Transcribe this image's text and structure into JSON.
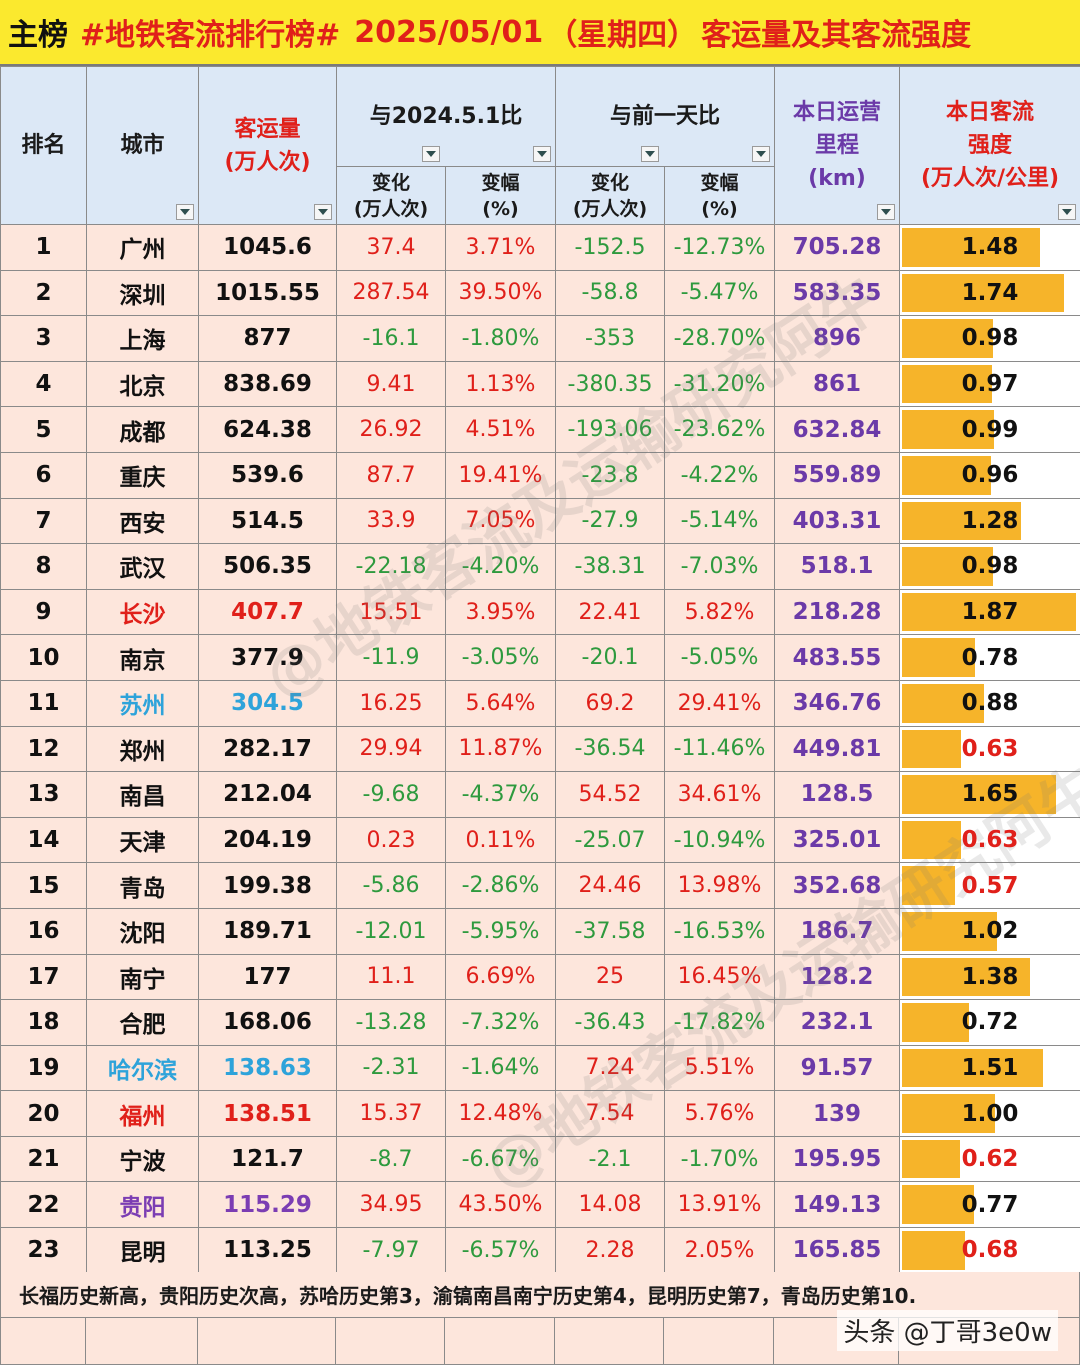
{
  "title": {
    "tag": "主榜",
    "hashtag": "#地铁客流排行榜#",
    "date": "2025/05/01",
    "weekday": "（星期四）",
    "subtitle": "客运量及其客流强度"
  },
  "headers": {
    "rank": "排名",
    "city": "城市",
    "volume_line1": "客运量",
    "volume_line2": "(万人次)",
    "yoy_group": "与2024.5.1比",
    "dod_group": "与前一天比",
    "change_line1": "变化",
    "change_line2": "(万人次)",
    "pct_line1": "变幅",
    "pct_line2": "(%)",
    "km_line1": "本日运营",
    "km_line2": "里程",
    "km_line3": "(km)",
    "intensity_line1": "本日客流",
    "intensity_line2": "强度",
    "intensity_line3": "(万人次/公里)"
  },
  "colors": {
    "title_bg": "#fbe92e",
    "header_bg": "#dce8f6",
    "row_bg": "#fde6dc",
    "intensity_bar": "#f6b42a",
    "positive": "#e0201a",
    "negative": "#2e9a3e",
    "km": "#6b3aa8"
  },
  "rows": [
    {
      "rank": "1",
      "city": "广州",
      "volume": "1045.6",
      "yoy_change": "37.4",
      "yoy_pct": "3.71%",
      "dod_change": "-152.5",
      "dod_pct": "-12.73%",
      "km": "705.28",
      "intensity": "1.48",
      "city_color": "black"
    },
    {
      "rank": "2",
      "city": "深圳",
      "volume": "1015.55",
      "yoy_change": "287.54",
      "yoy_pct": "39.50%",
      "dod_change": "-58.8",
      "dod_pct": "-5.47%",
      "km": "583.35",
      "intensity": "1.74",
      "city_color": "black"
    },
    {
      "rank": "3",
      "city": "上海",
      "volume": "877",
      "yoy_change": "-16.1",
      "yoy_pct": "-1.80%",
      "dod_change": "-353",
      "dod_pct": "-28.70%",
      "km": "896",
      "intensity": "0.98",
      "city_color": "black"
    },
    {
      "rank": "4",
      "city": "北京",
      "volume": "838.69",
      "yoy_change": "9.41",
      "yoy_pct": "1.13%",
      "dod_change": "-380.35",
      "dod_pct": "-31.20%",
      "km": "861",
      "intensity": "0.97",
      "city_color": "black"
    },
    {
      "rank": "5",
      "city": "成都",
      "volume": "624.38",
      "yoy_change": "26.92",
      "yoy_pct": "4.51%",
      "dod_change": "-193.06",
      "dod_pct": "-23.62%",
      "km": "632.84",
      "intensity": "0.99",
      "city_color": "black"
    },
    {
      "rank": "6",
      "city": "重庆",
      "volume": "539.6",
      "yoy_change": "87.7",
      "yoy_pct": "19.41%",
      "dod_change": "-23.8",
      "dod_pct": "-4.22%",
      "km": "559.89",
      "intensity": "0.96",
      "city_color": "black"
    },
    {
      "rank": "7",
      "city": "西安",
      "volume": "514.5",
      "yoy_change": "33.9",
      "yoy_pct": "7.05%",
      "dod_change": "-27.9",
      "dod_pct": "-5.14%",
      "km": "403.31",
      "intensity": "1.28",
      "city_color": "black"
    },
    {
      "rank": "8",
      "city": "武汉",
      "volume": "506.35",
      "yoy_change": "-22.18",
      "yoy_pct": "-4.20%",
      "dod_change": "-38.31",
      "dod_pct": "-7.03%",
      "km": "518.1",
      "intensity": "0.98",
      "city_color": "black"
    },
    {
      "rank": "9",
      "city": "长沙",
      "volume": "407.7",
      "yoy_change": "15.51",
      "yoy_pct": "3.95%",
      "dod_change": "22.41",
      "dod_pct": "5.82%",
      "km": "218.28",
      "intensity": "1.87",
      "city_color": "red"
    },
    {
      "rank": "10",
      "city": "南京",
      "volume": "377.9",
      "yoy_change": "-11.9",
      "yoy_pct": "-3.05%",
      "dod_change": "-20.1",
      "dod_pct": "-5.05%",
      "km": "483.55",
      "intensity": "0.78",
      "city_color": "black"
    },
    {
      "rank": "11",
      "city": "苏州",
      "volume": "304.5",
      "yoy_change": "16.25",
      "yoy_pct": "5.64%",
      "dod_change": "69.2",
      "dod_pct": "29.41%",
      "km": "346.76",
      "intensity": "0.88",
      "city_color": "blue"
    },
    {
      "rank": "12",
      "city": "郑州",
      "volume": "282.17",
      "yoy_change": "29.94",
      "yoy_pct": "11.87%",
      "dod_change": "-36.54",
      "dod_pct": "-11.46%",
      "km": "449.81",
      "intensity": "0.63",
      "city_color": "black"
    },
    {
      "rank": "13",
      "city": "南昌",
      "volume": "212.04",
      "yoy_change": "-9.68",
      "yoy_pct": "-4.37%",
      "dod_change": "54.52",
      "dod_pct": "34.61%",
      "km": "128.5",
      "intensity": "1.65",
      "city_color": "black"
    },
    {
      "rank": "14",
      "city": "天津",
      "volume": "204.19",
      "yoy_change": "0.23",
      "yoy_pct": "0.11%",
      "dod_change": "-25.07",
      "dod_pct": "-10.94%",
      "km": "325.01",
      "intensity": "0.63",
      "city_color": "black"
    },
    {
      "rank": "15",
      "city": "青岛",
      "volume": "199.38",
      "yoy_change": "-5.86",
      "yoy_pct": "-2.86%",
      "dod_change": "24.46",
      "dod_pct": "13.98%",
      "km": "352.68",
      "intensity": "0.57",
      "city_color": "black"
    },
    {
      "rank": "16",
      "city": "沈阳",
      "volume": "189.71",
      "yoy_change": "-12.01",
      "yoy_pct": "-5.95%",
      "dod_change": "-37.58",
      "dod_pct": "-16.53%",
      "km": "186.7",
      "intensity": "1.02",
      "city_color": "black"
    },
    {
      "rank": "17",
      "city": "南宁",
      "volume": "177",
      "yoy_change": "11.1",
      "yoy_pct": "6.69%",
      "dod_change": "25",
      "dod_pct": "16.45%",
      "km": "128.2",
      "intensity": "1.38",
      "city_color": "black"
    },
    {
      "rank": "18",
      "city": "合肥",
      "volume": "168.06",
      "yoy_change": "-13.28",
      "yoy_pct": "-7.32%",
      "dod_change": "-36.43",
      "dod_pct": "-17.82%",
      "km": "232.1",
      "intensity": "0.72",
      "city_color": "black"
    },
    {
      "rank": "19",
      "city": "哈尔滨",
      "volume": "138.63",
      "yoy_change": "-2.31",
      "yoy_pct": "-1.64%",
      "dod_change": "7.24",
      "dod_pct": "5.51%",
      "km": "91.57",
      "intensity": "1.51",
      "city_color": "blue"
    },
    {
      "rank": "20",
      "city": "福州",
      "volume": "138.51",
      "yoy_change": "15.37",
      "yoy_pct": "12.48%",
      "dod_change": "7.54",
      "dod_pct": "5.76%",
      "km": "139",
      "intensity": "1.00",
      "city_color": "red"
    },
    {
      "rank": "21",
      "city": "宁波",
      "volume": "121.7",
      "yoy_change": "-8.7",
      "yoy_pct": "-6.67%",
      "dod_change": "-2.1",
      "dod_pct": "-1.70%",
      "km": "195.95",
      "intensity": "0.62",
      "city_color": "black"
    },
    {
      "rank": "22",
      "city": "贵阳",
      "volume": "115.29",
      "yoy_change": "34.95",
      "yoy_pct": "43.50%",
      "dod_change": "14.08",
      "dod_pct": "13.91%",
      "km": "149.13",
      "intensity": "0.77",
      "city_color": "purple"
    },
    {
      "rank": "23",
      "city": "昆明",
      "volume": "113.25",
      "yoy_change": "-7.97",
      "yoy_pct": "-6.57%",
      "dod_change": "2.28",
      "dod_pct": "2.05%",
      "km": "165.85",
      "intensity": "0.68",
      "city_color": "black"
    }
  ],
  "footer_note": "长福历史新高，贵阳历史次高，苏哈历史第3，渝镐南昌南宁历史第4，昆明历史第7，青岛历史第10.",
  "credit": "头条 @丁哥3e0w",
  "watermark": "@地铁客流及运输研究阿牛"
}
